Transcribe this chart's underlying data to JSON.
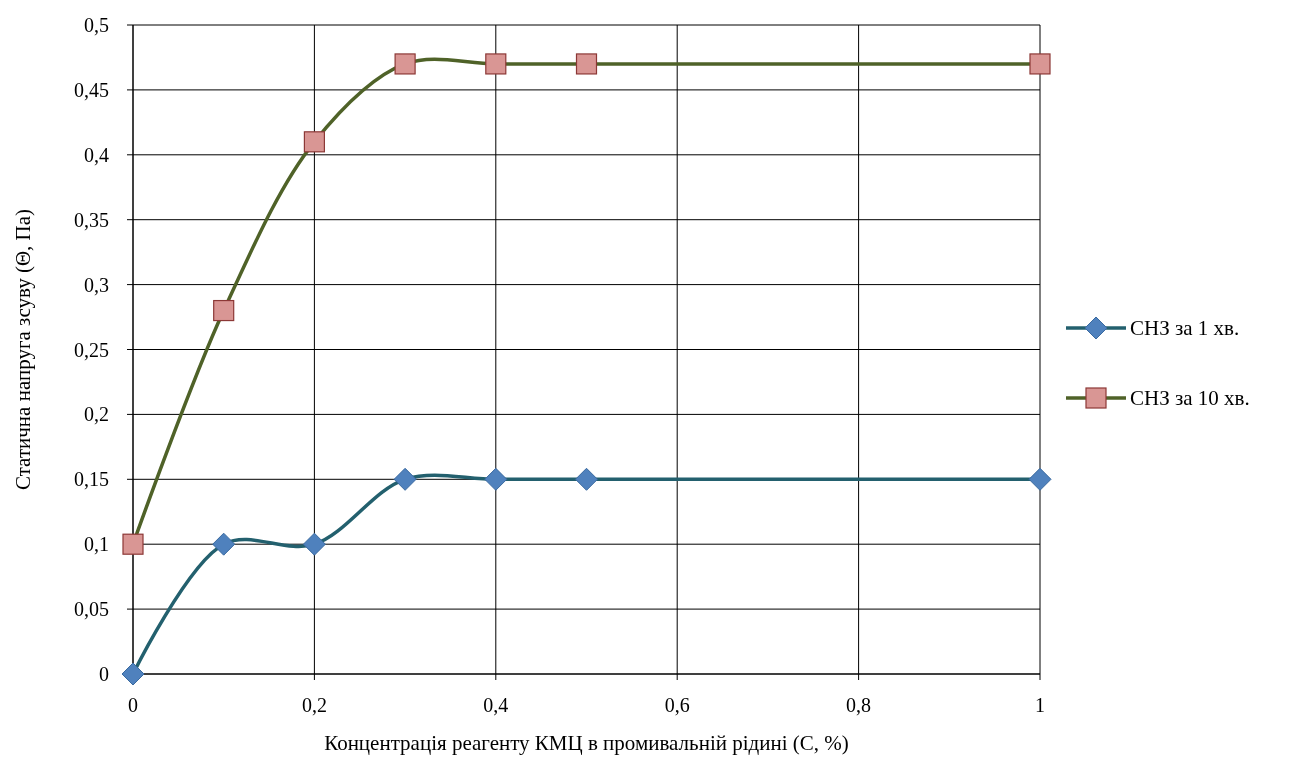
{
  "chart_data": {
    "type": "line",
    "xlabel": "Концентрація реагенту КМЦ в промивальній рідині (C, %)",
    "ylabel": "Статична напруга зсуву (Θ, Па)",
    "x": [
      0,
      0.1,
      0.2,
      0.3,
      0.4,
      0.5,
      1
    ],
    "series": [
      {
        "name": "СНЗ за 1 хв.",
        "color": "#23606e",
        "marker": "diamond",
        "values": [
          0,
          0.1,
          0.1,
          0.15,
          0.15,
          0.15,
          0.15
        ]
      },
      {
        "name": "СНЗ за 10 хв.",
        "color": "#4f6228",
        "marker": "square",
        "values": [
          0.1,
          0.28,
          0.41,
          0.47,
          0.47,
          0.47,
          0.47
        ]
      }
    ],
    "xlim": [
      0,
      1
    ],
    "xticks": [
      {
        "value": 0,
        "label": "0"
      },
      {
        "value": 0.2,
        "label": "0,2"
      },
      {
        "value": 0.4,
        "label": "0,4"
      },
      {
        "value": 0.6,
        "label": "0,6"
      },
      {
        "value": 0.8,
        "label": "0,8"
      },
      {
        "value": 1,
        "label": "1"
      }
    ],
    "ylim": [
      0,
      0.5
    ],
    "yticks": [
      {
        "value": 0,
        "label": "0"
      },
      {
        "value": 0.05,
        "label": "0,05"
      },
      {
        "value": 0.1,
        "label": "0,1"
      },
      {
        "value": 0.15,
        "label": "0,15"
      },
      {
        "value": 0.2,
        "label": "0,2"
      },
      {
        "value": 0.25,
        "label": "0,25"
      },
      {
        "value": 0.3,
        "label": "0,3"
      },
      {
        "value": 0.35,
        "label": "0,35"
      },
      {
        "value": 0.4,
        "label": "0,4"
      },
      {
        "value": 0.45,
        "label": "0,45"
      },
      {
        "value": 0.5,
        "label": "0,5"
      }
    ],
    "grid": true,
    "legend": "right",
    "line_style": "solid"
  }
}
